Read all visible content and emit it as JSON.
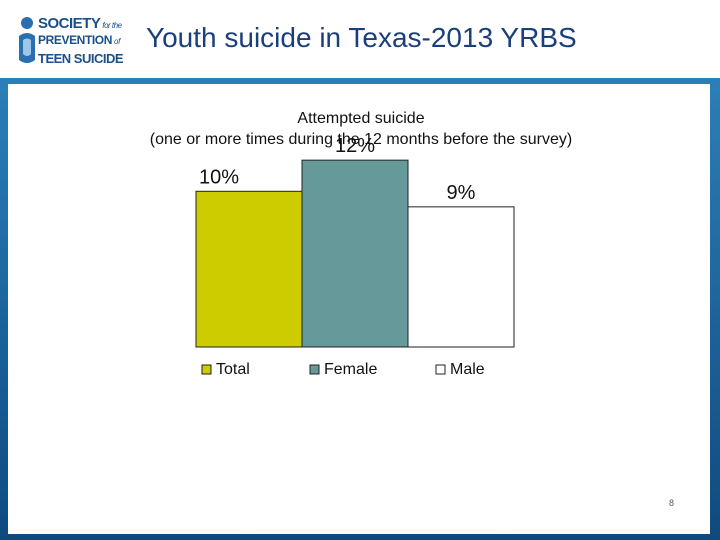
{
  "header": {
    "title": "Youth suicide in Texas-2013 YRBS",
    "logo": {
      "line1": "SOCIETY",
      "line1_small": "for the",
      "line2": "PREVENTION",
      "line2_small": "of",
      "line3": "TEEN SUICIDE"
    }
  },
  "colors": {
    "frame": "#1a5f97",
    "title": "#1a3f7a",
    "total": "#cccc00",
    "female": "#669999",
    "male": "#ffffff"
  },
  "chart_data": {
    "type": "bar",
    "title": "Attempted suicide",
    "subtitle": "(one or more times during the 12 months before the survey)",
    "categories": [
      "Total",
      "Female",
      "Male"
    ],
    "values": [
      10,
      12,
      9
    ],
    "data_labels": [
      "10%",
      "12%",
      "9%"
    ],
    "series_colors": [
      "#cccc00",
      "#669999",
      "#ffffff"
    ],
    "legend": [
      "Total",
      "Female",
      "Male"
    ],
    "legend_position": "bottom",
    "ylim": [
      0,
      14
    ],
    "grid": false
  },
  "footer": {
    "page_number": "8"
  }
}
